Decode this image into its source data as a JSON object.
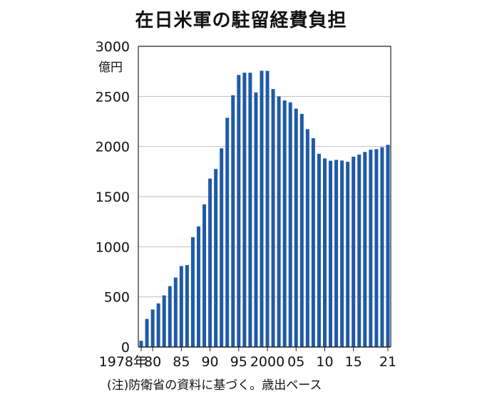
{
  "title": "在日米軍の駐留経費負担",
  "note": "(注)防衛省の資料に基づく。歳出ベース",
  "colors": {
    "bar": "#1f5aa6",
    "grid": "#bfbfbf",
    "axis": "#222222"
  },
  "chart_data": {
    "type": "bar",
    "title": "在日米軍の駐留経費負担",
    "unit": "億円",
    "ylim": [
      0,
      3000
    ],
    "yticks": [
      0,
      500,
      1000,
      1500,
      2000,
      2500,
      3000
    ],
    "xtick_labels": [
      "1978年",
      "80",
      "85",
      "90",
      "95",
      "2000",
      "05",
      "10",
      "15",
      "21"
    ],
    "grid": true,
    "categories": [
      1978,
      1979,
      1980,
      1981,
      1982,
      1983,
      1984,
      1985,
      1986,
      1987,
      1988,
      1989,
      1990,
      1991,
      1992,
      1993,
      1994,
      1995,
      1996,
      1997,
      1998,
      1999,
      2000,
      2001,
      2002,
      2003,
      2004,
      2005,
      2006,
      2007,
      2008,
      2009,
      2010,
      2011,
      2012,
      2013,
      2014,
      2015,
      2016,
      2017,
      2018,
      2019,
      2020,
      2021
    ],
    "values": [
      62,
      280,
      374,
      435,
      515,
      607,
      693,
      807,
      817,
      1096,
      1203,
      1423,
      1680,
      1776,
      1982,
      2287,
      2512,
      2714,
      2737,
      2737,
      2540,
      2756,
      2755,
      2573,
      2500,
      2460,
      2441,
      2378,
      2326,
      2173,
      2083,
      1928,
      1881,
      1858,
      1867,
      1860,
      1848,
      1899,
      1920,
      1946,
      1968,
      1974,
      1993,
      2017
    ]
  }
}
